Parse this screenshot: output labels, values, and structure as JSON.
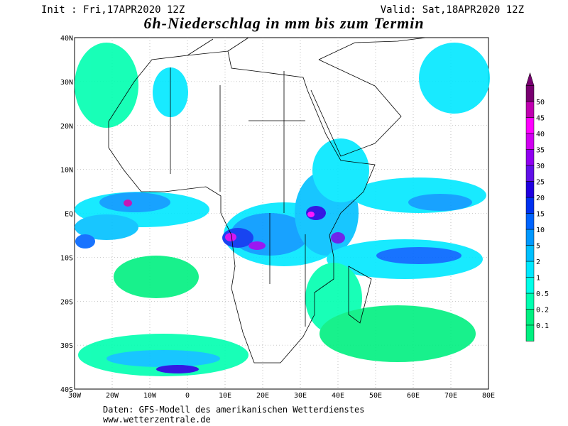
{
  "header": {
    "init": "Init : Fri,17APR2020 12Z",
    "valid": "Valid: Sat,18APR2020 12Z",
    "title": "6h-Niederschlag in mm bis zum Termin"
  },
  "map": {
    "lon_labels": [
      "30W",
      "20W",
      "10W",
      "0",
      "10E",
      "20E",
      "30E",
      "40E",
      "50E",
      "60E",
      "70E",
      "80E"
    ],
    "lat_labels": [
      "40N",
      "30N",
      "20N",
      "10N",
      "EQ",
      "10S",
      "20S",
      "30S",
      "40S"
    ]
  },
  "colorbar": {
    "levels": [
      0.1,
      0.2,
      0.5,
      1,
      2,
      5,
      10,
      15,
      20,
      25,
      30,
      35,
      40,
      45,
      50
    ],
    "colors": [
      "#00f080",
      "#00ffb0",
      "#00ffe8",
      "#00e8ff",
      "#00c0ff",
      "#0098ff",
      "#0064ff",
      "#0030f0",
      "#2000e0",
      "#6010e8",
      "#9000f0",
      "#d000f0",
      "#ff00ff",
      "#c000b0",
      "#780070"
    ]
  },
  "footer": {
    "line1": "Daten: GFS-Modell des amerikanischen Wetterdienstes",
    "line2": "www.wetterzentrale.de"
  }
}
